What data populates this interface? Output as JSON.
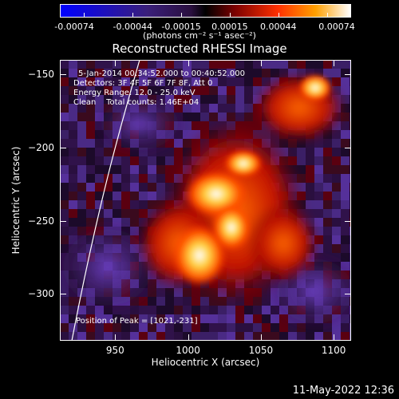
{
  "colorbar": {
    "ticks": [
      "-0.00074",
      "-0.00044",
      "-0.00015",
      "0.00015",
      "0.00044",
      "0.00074"
    ],
    "unit_label": "(photons cm⁻² s⁻¹ asec⁻²)",
    "colors": [
      "#0000ff",
      "#2a0f3f",
      "#000000",
      "#7a0000",
      "#ff4000",
      "#ffa000",
      "#ffffff"
    ]
  },
  "title": "Reconstructed RHESSI Image",
  "info": {
    "line1": "5-Jan-2014 00:34:52.000 to 00:40:52.000",
    "line2": "Detectors: 3F 4F 5F 6F 7F 8F, Att 0",
    "line3": "Energy Range: 12.0 - 25.0 keV",
    "line4": "Clean    Total counts: 1.46E+04",
    "peak": "Position of Peak = [1021,-231]"
  },
  "axes": {
    "xlabel": "Heliocentric X (arcsec)",
    "ylabel": "Heliocentric Y (arcsec)",
    "xticks": [
      "950",
      "1000",
      "1050",
      "1100"
    ],
    "yticks": [
      "-150",
      "-200",
      "-250",
      "-300"
    ],
    "xlim": [
      912,
      1112
    ],
    "ylim": [
      -332,
      -140
    ]
  },
  "image": {
    "peak_x": 1021,
    "peak_y": -231
  },
  "footer": "11-May-2022 12:36"
}
